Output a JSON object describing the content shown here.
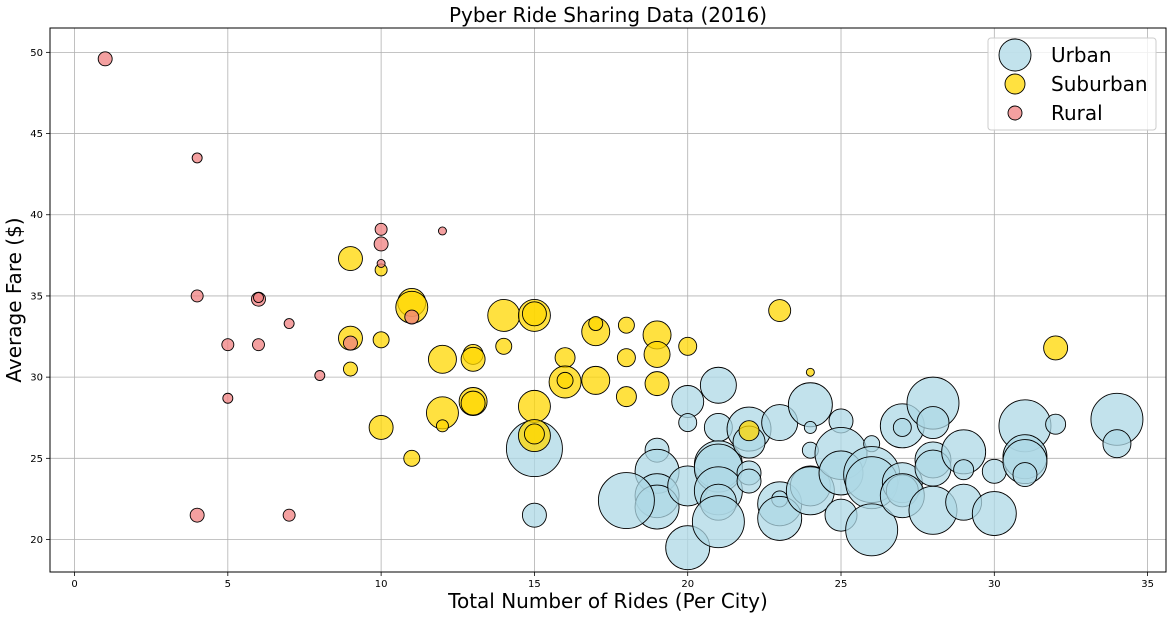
{
  "chart_data": {
    "type": "scatter",
    "title": "Pyber Ride Sharing Data (2016)",
    "xlabel": "Total Number of Rides (Per City)",
    "ylabel": "Average Fare ($)",
    "xlim": [
      -0.8,
      35.6
    ],
    "ylim": [
      18,
      51.5
    ],
    "xticks": [
      0,
      5,
      10,
      15,
      20,
      25,
      30,
      35
    ],
    "yticks": [
      20,
      25,
      30,
      35,
      40,
      45,
      50
    ],
    "grid": true,
    "legend_position": "top-right",
    "series": [
      {
        "name": "Urban",
        "color": "#add8e6",
        "points": [
          [
            15,
            25.6,
            28
          ],
          [
            15,
            21.5,
            12
          ],
          [
            19,
            25.5,
            12
          ],
          [
            19,
            24.2,
            22
          ],
          [
            19,
            22.7,
            22
          ],
          [
            19,
            22.0,
            22
          ],
          [
            18,
            22.4,
            28
          ],
          [
            20,
            19.5,
            22
          ],
          [
            20,
            23.3,
            20
          ],
          [
            20,
            28.5,
            16
          ],
          [
            20,
            27.2,
            9
          ],
          [
            21,
            29.5,
            18
          ],
          [
            21,
            26.9,
            14
          ],
          [
            21,
            24.6,
            24
          ],
          [
            21,
            24.4,
            24
          ],
          [
            21,
            23.0,
            24
          ],
          [
            21,
            22.3,
            18
          ],
          [
            21,
            21.1,
            26
          ],
          [
            22,
            26.8,
            22
          ],
          [
            22,
            26.0,
            16
          ],
          [
            22,
            24.1,
            12
          ],
          [
            22,
            23.6,
            12
          ],
          [
            23,
            27.2,
            18
          ],
          [
            23,
            22.2,
            22
          ],
          [
            23,
            22.5,
            8
          ],
          [
            23,
            21.3,
            22
          ],
          [
            24,
            28.3,
            22
          ],
          [
            24,
            26.9,
            6
          ],
          [
            24,
            25.5,
            8
          ],
          [
            24,
            23.3,
            20
          ],
          [
            24,
            23.0,
            24
          ],
          [
            25,
            27.3,
            12
          ],
          [
            25,
            25.3,
            26
          ],
          [
            25,
            24.1,
            22
          ],
          [
            25,
            21.5,
            16
          ],
          [
            26,
            25.9,
            8
          ],
          [
            26,
            24.0,
            28
          ],
          [
            26,
            23.5,
            26
          ],
          [
            26,
            20.6,
            26
          ],
          [
            27,
            27.0,
            22
          ],
          [
            27,
            26.9,
            9
          ],
          [
            27,
            23.5,
            20
          ],
          [
            27,
            23.0,
            16
          ],
          [
            27,
            22.7,
            22
          ],
          [
            28,
            28.4,
            26
          ],
          [
            28,
            27.2,
            16
          ],
          [
            28,
            24.9,
            18
          ],
          [
            28,
            24.4,
            18
          ],
          [
            28,
            21.8,
            24
          ],
          [
            29,
            25.4,
            22
          ],
          [
            29,
            24.3,
            10
          ],
          [
            29,
            22.3,
            18
          ],
          [
            30,
            24.2,
            12
          ],
          [
            30,
            21.6,
            22
          ],
          [
            31,
            27.0,
            26
          ],
          [
            31,
            25.1,
            22
          ],
          [
            31,
            24.8,
            22
          ],
          [
            31,
            24.0,
            12
          ],
          [
            32,
            27.1,
            10
          ],
          [
            34,
            27.4,
            26
          ],
          [
            34,
            25.9,
            14
          ]
        ]
      },
      {
        "name": "Suburban",
        "color": "#ffd700",
        "points": [
          [
            9,
            37.3,
            12
          ],
          [
            9,
            32.4,
            12
          ],
          [
            9,
            30.5,
            7
          ],
          [
            10,
            36.6,
            6
          ],
          [
            10,
            32.3,
            8
          ],
          [
            10,
            26.9,
            12
          ],
          [
            11,
            34.6,
            14
          ],
          [
            11,
            34.3,
            16
          ],
          [
            11,
            25.0,
            8
          ],
          [
            12,
            31.1,
            14
          ],
          [
            12,
            27.8,
            16
          ],
          [
            12,
            27.0,
            6
          ],
          [
            13,
            31.4,
            10
          ],
          [
            13,
            31.1,
            12
          ],
          [
            13,
            28.5,
            14
          ],
          [
            13,
            28.4,
            12
          ],
          [
            14,
            33.8,
            16
          ],
          [
            14,
            31.9,
            8
          ],
          [
            15,
            33.8,
            16
          ],
          [
            15,
            33.9,
            12
          ],
          [
            15,
            28.2,
            16
          ],
          [
            15,
            26.4,
            16
          ],
          [
            15,
            26.5,
            10
          ],
          [
            16,
            31.2,
            10
          ],
          [
            16,
            29.7,
            16
          ],
          [
            16,
            29.8,
            8
          ],
          [
            17,
            32.8,
            14
          ],
          [
            17,
            33.3,
            7
          ],
          [
            17,
            29.8,
            14
          ],
          [
            18,
            33.2,
            8
          ],
          [
            18,
            31.2,
            9
          ],
          [
            18,
            28.8,
            10
          ],
          [
            19,
            32.6,
            14
          ],
          [
            19,
            31.4,
            13
          ],
          [
            19,
            29.6,
            12
          ],
          [
            20,
            31.9,
            9
          ],
          [
            22,
            26.7,
            10
          ],
          [
            23,
            34.1,
            11
          ],
          [
            24,
            30.3,
            4
          ],
          [
            32,
            31.8,
            12
          ]
        ]
      },
      {
        "name": "Rural",
        "color": "#f08080",
        "points": [
          [
            1,
            49.6,
            7
          ],
          [
            4,
            43.5,
            5
          ],
          [
            4,
            35.0,
            6
          ],
          [
            4,
            21.5,
            7
          ],
          [
            5,
            32.0,
            6
          ],
          [
            5,
            28.7,
            5
          ],
          [
            6,
            34.8,
            7
          ],
          [
            6,
            34.9,
            5
          ],
          [
            6,
            32.0,
            6
          ],
          [
            7,
            33.3,
            5
          ],
          [
            7,
            21.5,
            6
          ],
          [
            8,
            30.1,
            5
          ],
          [
            9,
            32.1,
            7
          ],
          [
            10,
            39.1,
            6
          ],
          [
            10,
            38.2,
            7
          ],
          [
            10,
            37.0,
            4
          ],
          [
            11,
            33.7,
            7
          ],
          [
            12,
            39.0,
            4
          ]
        ]
      }
    ]
  }
}
